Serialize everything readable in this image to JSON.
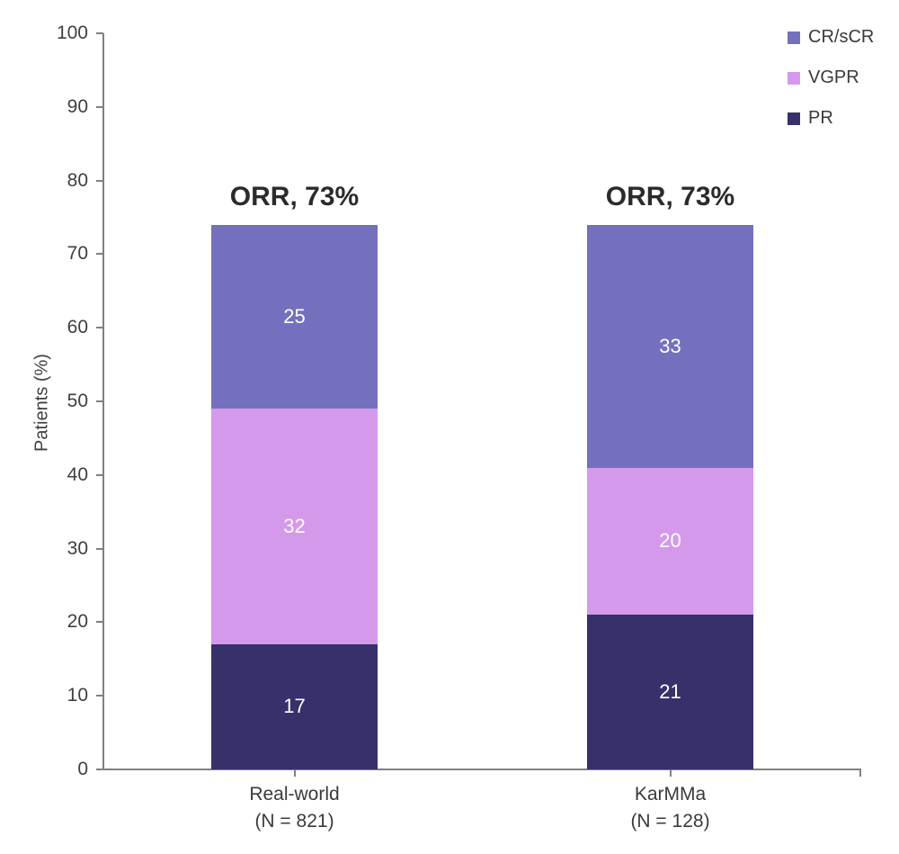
{
  "chart_data": {
    "type": "bar",
    "stacked": true,
    "title": "",
    "categories": [
      "Real-world",
      "KarMMa"
    ],
    "category_sublabels": [
      "(N = 821)",
      "(N = 128)"
    ],
    "series": [
      {
        "name": "PR",
        "values": [
          17,
          21
        ],
        "color": "#37306B"
      },
      {
        "name": "VGPR",
        "values": [
          32,
          20
        ],
        "color": "#D599EC"
      },
      {
        "name": "CR/sCR",
        "values": [
          25,
          33
        ],
        "color": "#7470BE"
      }
    ],
    "bar_annotations": [
      "ORR, 73%",
      "ORR, 73%"
    ],
    "ylabel": "Patients (%)",
    "xlabel": "",
    "ylim": [
      0,
      100
    ],
    "yticks": [
      0,
      10,
      20,
      30,
      40,
      50,
      60,
      70,
      80,
      90,
      100
    ],
    "legend": [
      "CR/sCR",
      "VGPR",
      "PR"
    ],
    "legend_position": "top-right",
    "grid": false,
    "value_label_color": "#FFFFFF",
    "axis_color": "#808080",
    "tick_text_color": "#3F3F3F",
    "annotation_color": "#2B2B2B"
  }
}
